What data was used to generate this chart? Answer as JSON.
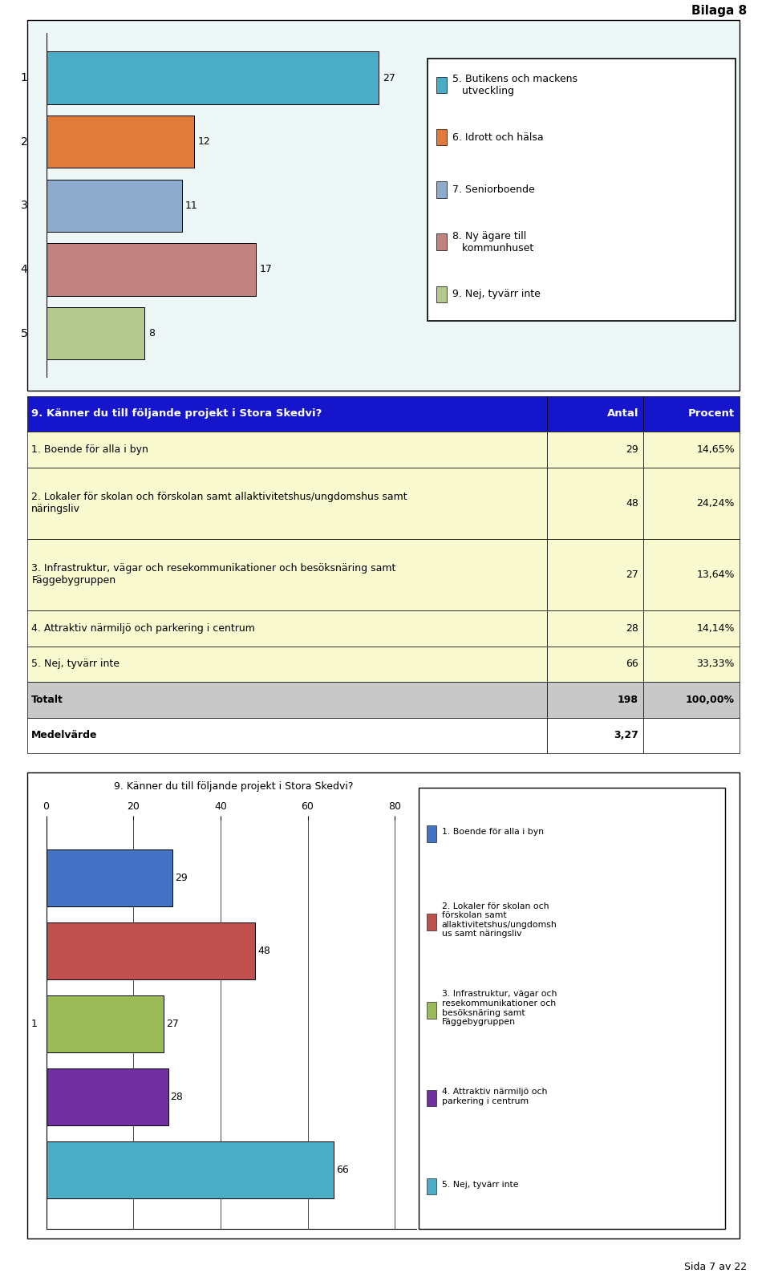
{
  "bilaga_text": "Bilaga 8",
  "sida_text": "Sida 7 av 22",
  "chart1_bars": [
    {
      "label": "1",
      "value": 27,
      "color": "#4BACC6"
    },
    {
      "label": "2",
      "value": 12,
      "color": "#E07B39"
    },
    {
      "label": "3",
      "value": 11,
      "color": "#8EAACC"
    },
    {
      "label": "4",
      "value": 17,
      "color": "#C0837F"
    },
    {
      "label": "5",
      "value": 8,
      "color": "#B5C98E"
    }
  ],
  "chart1_legend": [
    {
      "label": "5. Butikens och mackens\n   utveckling",
      "color": "#4BACC6"
    },
    {
      "label": "6. Idrott och hälsa",
      "color": "#E07B39"
    },
    {
      "label": "7. Seniorboende",
      "color": "#8EAACC"
    },
    {
      "label": "8. Ny ägare till\n   kommunhuset",
      "color": "#C0837F"
    },
    {
      "label": "9. Nej, tyvärr inte",
      "color": "#B5C98E"
    }
  ],
  "table_header_bg": "#1515CC",
  "table_header_text_color": "#FFFFFF",
  "table_header_label": "9. Känner du till följande projekt i Stora Skedvi?",
  "table_header_col1": "Antal",
  "table_header_col2": "Procent",
  "table_rows": [
    {
      "label": "1. Boende för alla i byn",
      "antal": "29",
      "procent": "14,65%"
    },
    {
      "label": "2. Lokaler för skolan och förskolan samt allaktivitetshus/ungdomshus samt\nnäringsliv",
      "antal": "48",
      "procent": "24,24%"
    },
    {
      "label": "3. Infrastruktur, vägar och resekommunikationer och besöksnäring samt\nFäggebygruppen",
      "antal": "27",
      "procent": "13,64%"
    },
    {
      "label": "4. Attraktiv närmiljö och parkering i centrum",
      "antal": "28",
      "procent": "14,14%"
    },
    {
      "label": "5. Nej, tyvärr inte",
      "antal": "66",
      "procent": "33,33%"
    }
  ],
  "table_total_row": {
    "label": "Totalt",
    "antal": "198",
    "procent": "100,00%"
  },
  "table_medel_row": {
    "label": "Medelvärde",
    "antal": "3,27",
    "procent": ""
  },
  "table_row_bg": "#FAFAD0",
  "table_total_bg": "#C8C8C8",
  "table_medel_bg": "#FFFFFF",
  "chart2_title": "9. Känner du till följande projekt i Stora Skedvi?",
  "chart2_bars": [
    {
      "value": 29,
      "color": "#4472C4"
    },
    {
      "value": 48,
      "color": "#C0504D"
    },
    {
      "value": 27,
      "color": "#9BBB59"
    },
    {
      "value": 28,
      "color": "#7030A0"
    },
    {
      "value": 66,
      "color": "#4BACC6"
    }
  ],
  "chart2_xticks": [
    0,
    20,
    40,
    60,
    80
  ],
  "chart2_legend_entries": [
    {
      "label": "1. Boende för alla i byn",
      "color": "#4472C4"
    },
    {
      "label": "2. Lokaler för skolan och\nförskolan samt\nallaktivitetshus/ungdomsh\nus samt näringsliv",
      "color": "#C0504D"
    },
    {
      "label": "3. Infrastruktur, vägar och\nresekommunikationer och\nbesöksnäring samt\nFäggebygruppen",
      "color": "#9BBB59"
    },
    {
      "label": "4. Attraktiv närmiljö och\nparkering i centrum",
      "color": "#7030A0"
    },
    {
      "label": "5. Nej, tyvärr inte",
      "color": "#4BACC6"
    }
  ],
  "outer_bg": "#FFFFFF",
  "chart_bg": "#EEF7F7"
}
